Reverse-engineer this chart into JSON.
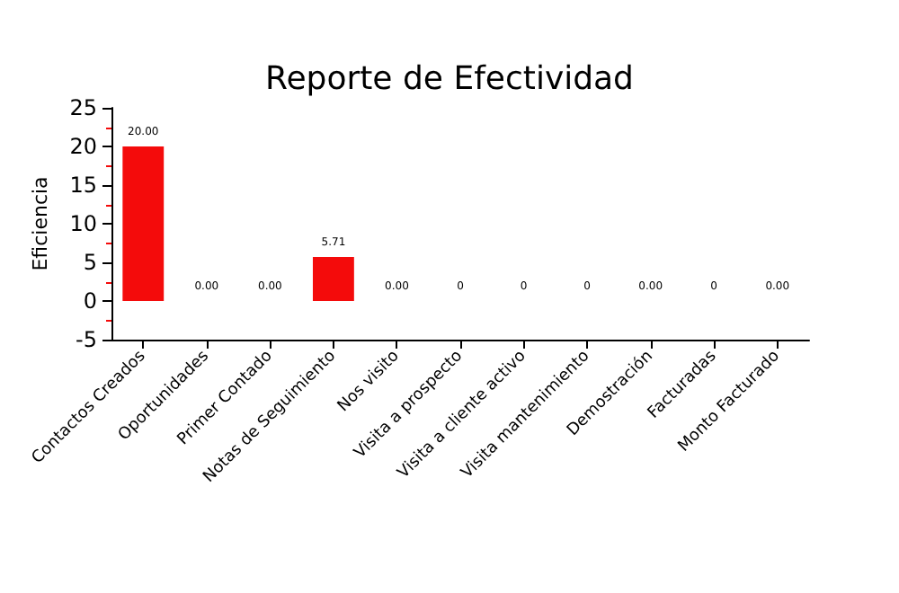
{
  "chart_data": {
    "type": "bar",
    "title": "Reporte de Efectividad",
    "ylabel": "Eficiencia",
    "categories": [
      "Contactos Creados",
      "Oportunidades",
      "Primer Contado",
      "Notas de Seguimiento",
      "Nos visito",
      "Visita a prospecto",
      "Visita a cliente activo",
      "Visita mantenimiento",
      "Demostración",
      "Facturadas",
      "Monto Facturado"
    ],
    "values": [
      20,
      0,
      0,
      5.71,
      0,
      0,
      0,
      0,
      0,
      0,
      0
    ],
    "value_labels": [
      "20.00",
      "0.00",
      "0.00",
      "5.71",
      "0.00",
      "0",
      "0",
      "0",
      "0.00",
      "0",
      "0.00"
    ],
    "color": "#f40b0b",
    "ylim": [
      -5,
      25
    ],
    "yticks": [
      -5,
      0,
      5,
      10,
      15,
      20,
      25
    ],
    "grid": false
  }
}
